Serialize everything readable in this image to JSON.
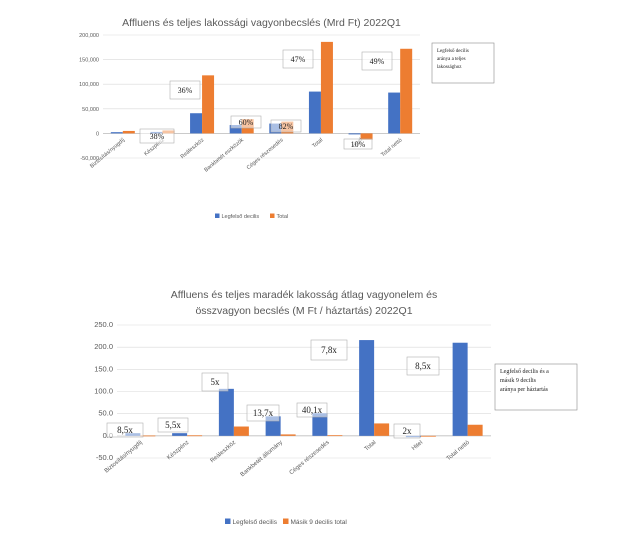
{
  "colors": {
    "blue": "#4472c4",
    "orange": "#ed7d31",
    "grid": "#d9d9d9",
    "axis": "#bfbfbf"
  },
  "chart_data": [
    {
      "type": "bar",
      "title": "Affluens és teljes lakossági vagyonbecslés (Mrd Ft) 2022Q1",
      "categories": [
        "Biztosítás/nyugdíj",
        "Készpénz",
        "Reáleszköz",
        "Bankbetét eszközök",
        "Céges részesedés",
        "Total",
        "Hitel",
        "Total nettó"
      ],
      "series": [
        {
          "name": "Legfelső decilis",
          "values": [
            2500,
            3000,
            41000,
            17000,
            20000,
            85000,
            -2000,
            83000
          ]
        },
        {
          "name": "Total",
          "values": [
            5000,
            6000,
            118000,
            29000,
            24000,
            186000,
            -13000,
            172000
          ]
        }
      ],
      "ytick_labels": [
        "-50,000",
        "0",
        "50,000",
        "100,000",
        "150,000",
        "200,000"
      ],
      "ylim": [
        -50000,
        200000
      ],
      "annotations": [
        "38%",
        "36%",
        "60%",
        "82%",
        "47%",
        "10%",
        "49%"
      ],
      "note": [
        "Legfelső decilis",
        "aránya a teljes",
        "lakossághoz"
      ]
    },
    {
      "type": "bar",
      "title": [
        "Affluens és teljes maradék lakosság átlag vagyonelem és",
        "összvagyon becslés (M Ft / háztartás) 2022Q1"
      ],
      "categories": [
        "Biztosítás/nyugdíj",
        "Készpénz",
        "Reáleszköz",
        "Bankbetét állomány",
        "Céges részesedés",
        "Total",
        "Hitel",
        "Total nettó"
      ],
      "series": [
        {
          "name": "Legfelső decilis",
          "values": [
            6,
            6,
            106,
            44,
            51,
            216,
            -3,
            210
          ]
        },
        {
          "name": "Másik 9 decilis total",
          "values": [
            0.7,
            1.1,
            21,
            3.2,
            1.3,
            28,
            -1.5,
            25
          ]
        }
      ],
      "ytick_labels": [
        "-50.0",
        "0.0",
        "50.0",
        "100.0",
        "150.0",
        "200.0",
        "250.0"
      ],
      "ylim": [
        -50,
        250
      ],
      "annotations": [
        "8,5x",
        "5,5x",
        "5x",
        "13,7x",
        "40,1x",
        "7,8x",
        "2x",
        "8,5x"
      ],
      "note": [
        "Legfelső decilis és a",
        "másik 9 decilis",
        "aránya per háztartás"
      ]
    }
  ]
}
